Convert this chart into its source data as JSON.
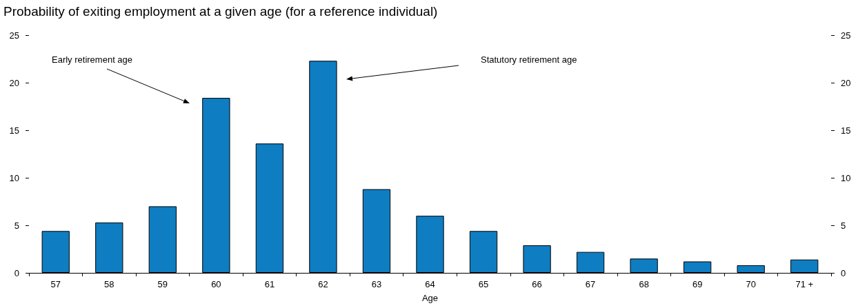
{
  "chart_data": {
    "type": "bar",
    "title": "Probability of exiting employment at a given age (for a reference individual)",
    "xlabel": "Age",
    "categories": [
      "57",
      "58",
      "59",
      "60",
      "61",
      "62",
      "63",
      "64",
      "65",
      "66",
      "67",
      "68",
      "69",
      "70",
      "71 +"
    ],
    "values": [
      4.4,
      5.3,
      7.0,
      18.4,
      13.6,
      22.3,
      8.8,
      6.0,
      4.4,
      2.9,
      2.2,
      1.5,
      1.2,
      0.8,
      1.4
    ],
    "color": "#0f7dc2",
    "ylim": [
      0,
      25
    ],
    "yticks": [
      0,
      5,
      10,
      15,
      20,
      25
    ],
    "y2lim": [
      0,
      25
    ],
    "y2ticks": [
      0,
      5,
      10,
      15,
      20,
      25
    ],
    "grid": false,
    "annotations": [
      "Early retirement age",
      "Statutory retirement age"
    ]
  }
}
